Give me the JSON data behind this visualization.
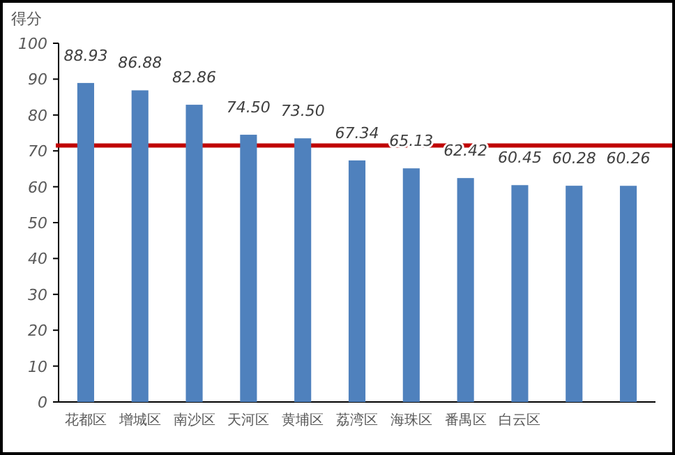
{
  "chart_data": {
    "type": "bar",
    "ylabel": "得分",
    "categories": [
      "花都区",
      "增城区",
      "南沙区",
      "天河区",
      "黄埔区",
      "荔湾区",
      "海珠区",
      "番禺区",
      "白云区",
      null,
      null
    ],
    "values": [
      88.93,
      86.88,
      82.86,
      74.5,
      73.5,
      67.34,
      65.13,
      62.42,
      60.45,
      60.28,
      60.26
    ],
    "value_labels": [
      "88.93",
      "86.88",
      "82.86",
      "74.50",
      "73.50",
      "67.34",
      "65.13",
      "62.42",
      "60.45",
      "60.28",
      "60.26"
    ],
    "color": "#4f81bd",
    "ylim": [
      0,
      100
    ],
    "yticks": [
      0,
      10,
      20,
      30,
      40,
      50,
      60,
      70,
      80,
      90,
      100
    ],
    "ref_lines": [
      {
        "axis": "y",
        "value": 71.5,
        "color": "#c00000",
        "line_style": "solid"
      }
    ],
    "grid": false
  }
}
